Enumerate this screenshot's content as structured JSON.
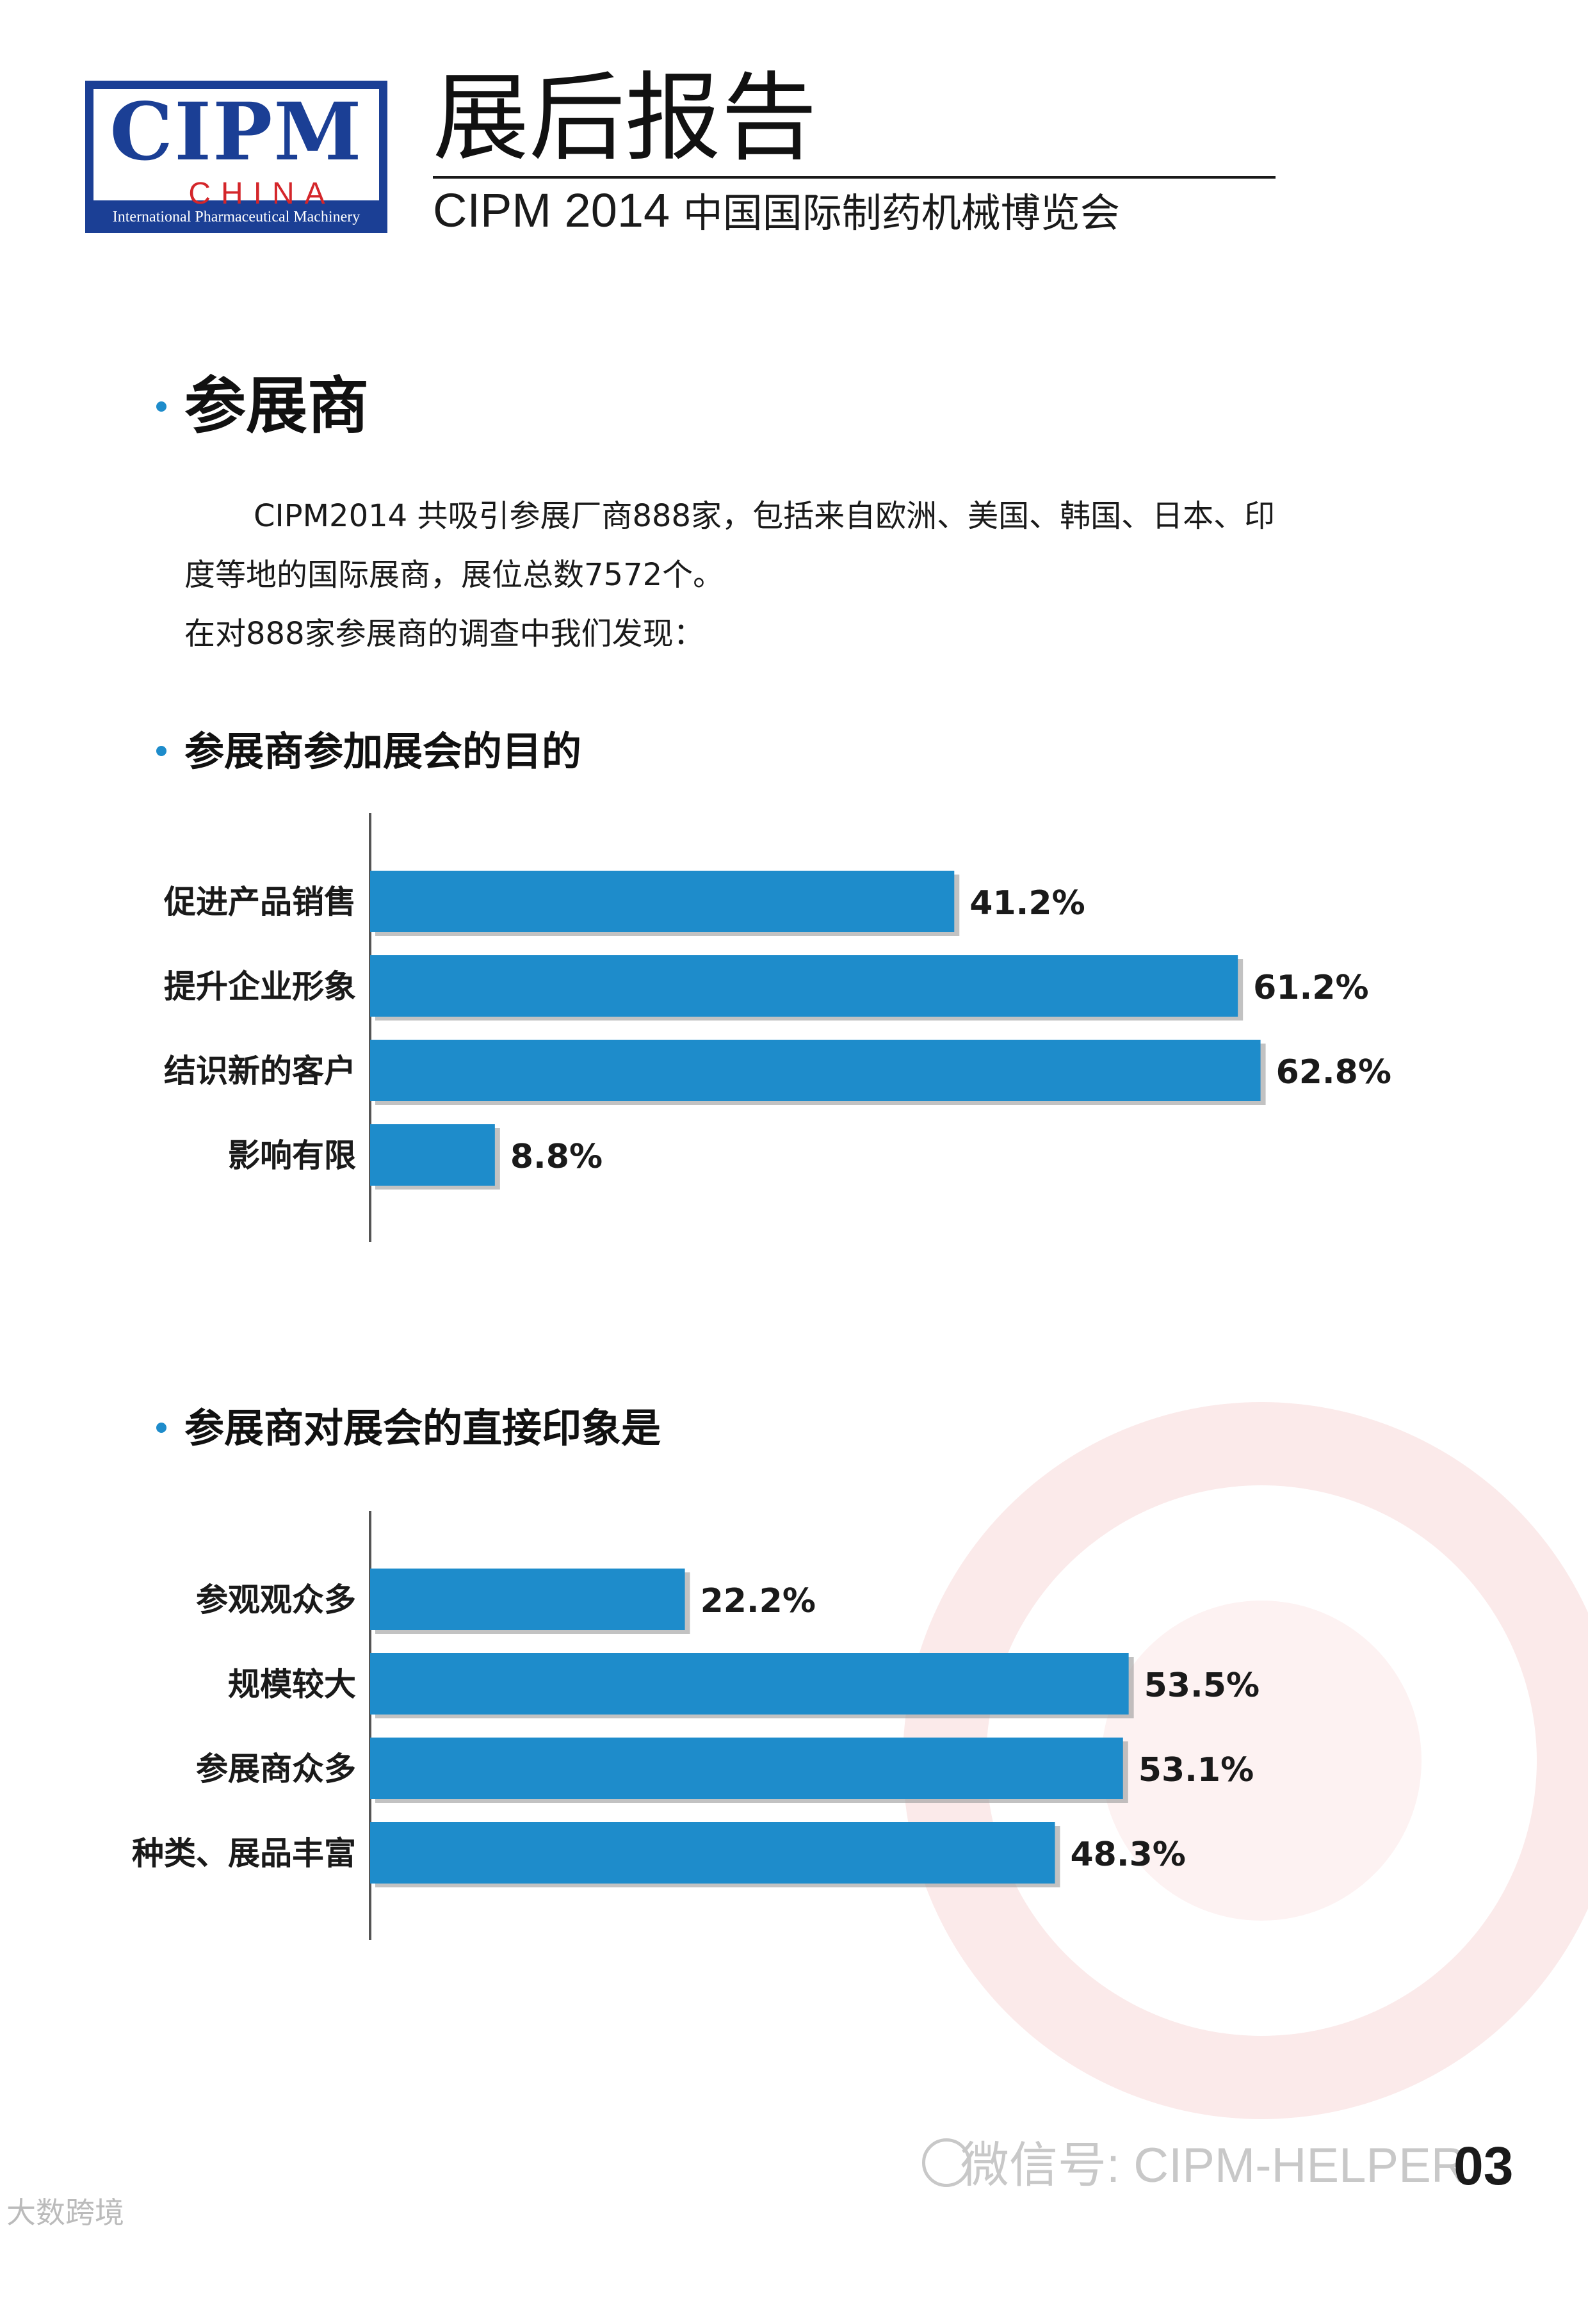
{
  "header": {
    "logo_text": "CIPM",
    "logo_sub": "CHINA",
    "logo_caption": "International Pharmaceutical Machinery",
    "title": "展后报告",
    "subtitle_en": "CIPM 2014",
    "subtitle_cn": "中国国际制药机械博览会"
  },
  "section": {
    "title": "参展商",
    "paragraph_line1": "CIPM2014 共吸引参展厂商888家，包括来自欧洲、美国、韩国、日本、印",
    "paragraph_line2": "度等地的国际展商，展位总数7572个。",
    "paragraph_line3": "在对888家参展商的调查中我们发现："
  },
  "colors": {
    "bar": "#1e8ccb",
    "bullet": "#1e8ccb",
    "logo_blue": "#1b3f95",
    "logo_red": "#d4262a"
  },
  "chart_data": [
    {
      "type": "bar",
      "orientation": "horizontal",
      "title": "参展商参加展会的目的",
      "categories": [
        "促进产品销售",
        "提升企业形象",
        "结识新的客户",
        "影响有限"
      ],
      "values": [
        41.2,
        61.2,
        62.8,
        8.8
      ],
      "value_labels": [
        "41.2%",
        "61.2%",
        "62.8%",
        "8.8%"
      ],
      "unit": "%",
      "grid": false,
      "xlim": [
        0,
        70
      ]
    },
    {
      "type": "bar",
      "orientation": "horizontal",
      "title": "参展商对展会的直接印象是",
      "categories": [
        "参观观众多",
        "规模较大",
        "参展商众多",
        "种类、展品丰富"
      ],
      "values": [
        22.2,
        53.5,
        53.1,
        48.3
      ],
      "value_labels": [
        "22.2%",
        "53.5%",
        "53.1%",
        "48.3%"
      ],
      "unit": "%",
      "grid": false,
      "xlim": [
        0,
        70
      ]
    }
  ],
  "footer": {
    "wechat": "微信号: CIPM-HELPER",
    "page_number": "03",
    "corner_mark": "大数跨境"
  }
}
